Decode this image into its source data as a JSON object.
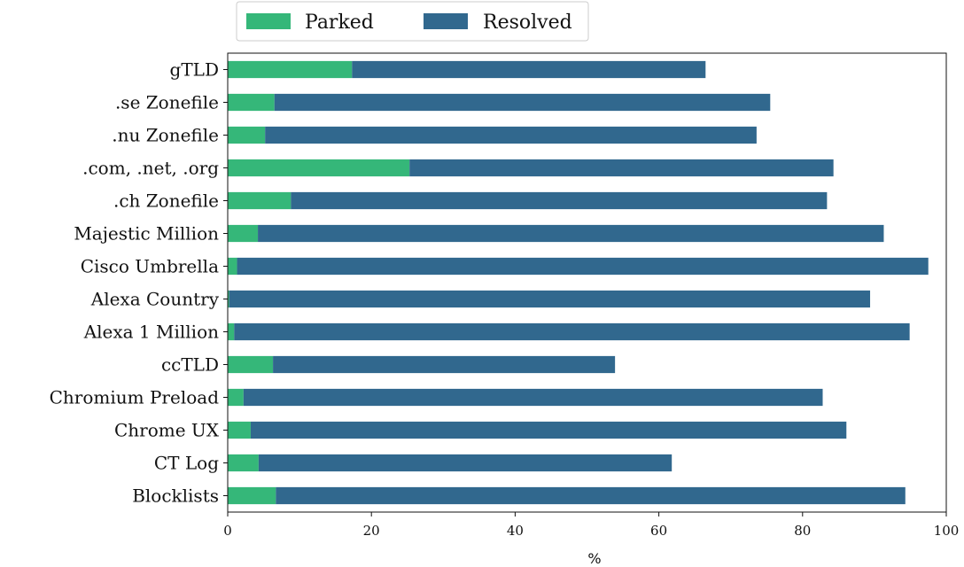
{
  "chart_data": {
    "type": "bar",
    "orientation": "horizontal",
    "stacked": true,
    "categories": [
      "gTLD",
      ".se Zonefile",
      ".nu Zonefile",
      ".com, .net, .org",
      ".ch Zonefile",
      "Majestic Million",
      "Cisco Umbrella",
      "Alexa Country",
      "Alexa 1 Million",
      "ccTLD",
      "Chromium Preload",
      "Chrome UX",
      "CT Log",
      "Blocklists"
    ],
    "series": [
      {
        "name": "Parked",
        "color": "#35b779",
        "values": [
          17.3,
          6.5,
          5.2,
          25.3,
          8.8,
          4.2,
          1.3,
          0.2,
          0.9,
          6.3,
          2.2,
          3.2,
          4.3,
          6.7
        ]
      },
      {
        "name": "Resolved",
        "color": "#31688e",
        "values": [
          49.2,
          69.0,
          68.4,
          59.0,
          74.6,
          87.1,
          96.2,
          89.2,
          94.0,
          47.6,
          80.6,
          82.9,
          57.5,
          87.6
        ]
      }
    ],
    "xlabel": "%",
    "xlim": [
      0,
      100
    ],
    "xticks": [
      0,
      20,
      40,
      60,
      80,
      100
    ],
    "legend": "top-left, outside"
  }
}
